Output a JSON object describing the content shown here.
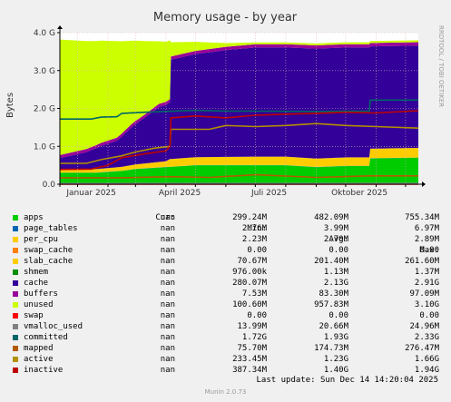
{
  "chart_data": {
    "type": "area",
    "title": "Memory usage - by year",
    "ylabel": "Bytes",
    "side_label": "RRDTOOL / TOBI OETIKER",
    "ylim": [
      0,
      4000000000
    ],
    "y_ticks": [
      {
        "value": 0,
        "label": "0.0"
      },
      {
        "value": 1000000000,
        "label": "1.0 G"
      },
      {
        "value": 2000000000,
        "label": "2.0 G"
      },
      {
        "value": 3000000000,
        "label": "3.0 G"
      },
      {
        "value": 4000000000,
        "label": "4.0 G"
      }
    ],
    "x_range": [
      "2024-12-14",
      "2025-12-14"
    ],
    "x_ticks": [
      {
        "date": "2025-01-15",
        "label": "Januar 2025"
      },
      {
        "date": "2025-04-15",
        "label": "April 2025"
      },
      {
        "date": "2025-07-15",
        "label": "Juli 2025"
      },
      {
        "date": "2025-10-15",
        "label": "Oktober 2025"
      }
    ],
    "x_grid": [
      "2025-01-01",
      "2025-02-01",
      "2025-03-01",
      "2025-04-01",
      "2025-05-01",
      "2025-06-01",
      "2025-07-01",
      "2025-08-01",
      "2025-09-01",
      "2025-10-01",
      "2025-11-01",
      "2025-12-01"
    ],
    "stack_series": [
      {
        "name": "apps",
        "color": "#00cc00",
        "points": [
          [
            "2024-12-14",
            0.3
          ],
          [
            "2025-01-20",
            0.3
          ],
          [
            "2025-02-15",
            0.35
          ],
          [
            "2025-03-01",
            0.4
          ],
          [
            "2025-04-01",
            0.45
          ],
          [
            "2025-05-01",
            0.5
          ],
          [
            "2025-08-01",
            0.5
          ],
          [
            "2025-09-01",
            0.45
          ],
          [
            "2025-10-01",
            0.48
          ],
          [
            "2025-10-25",
            0.48
          ],
          [
            "2025-10-26",
            0.68
          ],
          [
            "2025-12-14",
            0.7
          ]
        ]
      },
      {
        "name": "page_tables",
        "color": "#0066b3",
        "points": [
          [
            "2024-12-14",
            0.004
          ],
          [
            "2025-12-14",
            0.004
          ]
        ]
      },
      {
        "name": "per_cpu",
        "color": "#ffcc00",
        "points": [
          [
            "2024-12-14",
            0.003
          ],
          [
            "2025-12-14",
            0.003
          ]
        ]
      },
      {
        "name": "swap_cache",
        "color": "#ff8000",
        "points": [
          [
            "2024-12-14",
            0
          ],
          [
            "2025-12-14",
            0
          ]
        ]
      },
      {
        "name": "slab_cache",
        "color": "#ffcc00",
        "points": [
          [
            "2024-12-14",
            0.08
          ],
          [
            "2025-02-15",
            0.1
          ],
          [
            "2025-04-01",
            0.15
          ],
          [
            "2025-04-05",
            0.2
          ],
          [
            "2025-07-01",
            0.22
          ],
          [
            "2025-10-25",
            0.22
          ],
          [
            "2025-10-26",
            0.25
          ],
          [
            "2025-12-14",
            0.25
          ]
        ]
      },
      {
        "name": "shmem",
        "color": "#330099",
        "points": [
          [
            "2024-12-14",
            0.001
          ],
          [
            "2025-12-14",
            0.001
          ]
        ]
      },
      {
        "name": "cache",
        "color": "#330099",
        "points": [
          [
            "2024-12-14",
            0.3
          ],
          [
            "2025-01-10",
            0.45
          ],
          [
            "2025-01-25",
            0.6
          ],
          [
            "2025-02-10",
            0.7
          ],
          [
            "2025-02-25",
            1.0
          ],
          [
            "2025-03-10",
            1.2
          ],
          [
            "2025-03-25",
            1.45
          ],
          [
            "2025-04-05",
            1.5
          ],
          [
            "2025-04-06",
            2.62
          ],
          [
            "2025-05-01",
            2.72
          ],
          [
            "2025-06-01",
            2.82
          ],
          [
            "2025-07-01",
            2.88
          ],
          [
            "2025-08-01",
            2.88
          ],
          [
            "2025-09-01",
            2.9
          ],
          [
            "2025-10-01",
            2.9
          ],
          [
            "2025-10-25",
            2.9
          ],
          [
            "2025-10-26",
            2.7
          ],
          [
            "2025-12-14",
            2.7
          ]
        ]
      },
      {
        "name": "buffers",
        "color": "#990099",
        "points": [
          [
            "2024-12-14",
            0.08
          ],
          [
            "2025-12-14",
            0.09
          ]
        ]
      },
      {
        "name": "unused",
        "color": "#ccff00",
        "points": [
          [
            "2024-12-14",
            3.05
          ],
          [
            "2025-01-10",
            2.85
          ],
          [
            "2025-01-25",
            2.7
          ],
          [
            "2025-02-10",
            2.55
          ],
          [
            "2025-02-25",
            2.2
          ],
          [
            "2025-03-10",
            1.95
          ],
          [
            "2025-03-25",
            1.65
          ],
          [
            "2025-04-05",
            1.55
          ],
          [
            "2025-04-06",
            0.38
          ],
          [
            "2025-05-01",
            0.24
          ],
          [
            "2025-06-01",
            0.1
          ],
          [
            "2025-07-01",
            0.05
          ],
          [
            "2025-12-14",
            0.05
          ]
        ]
      }
    ],
    "line_series": [
      {
        "name": "swap",
        "color": "#ff0000",
        "points": [
          [
            "2024-12-14",
            0
          ],
          [
            "2025-12-14",
            0
          ]
        ]
      },
      {
        "name": "vmalloc_used",
        "color": "#808080",
        "points": [
          [
            "2024-12-14",
            0.02
          ],
          [
            "2025-12-14",
            0.02
          ]
        ]
      },
      {
        "name": "committed",
        "color": "#006666",
        "points": [
          [
            "2024-12-14",
            1.72
          ],
          [
            "2025-01-15",
            1.72
          ],
          [
            "2025-01-25",
            1.77
          ],
          [
            "2025-02-10",
            1.78
          ],
          [
            "2025-02-15",
            1.87
          ],
          [
            "2025-03-10",
            1.9
          ],
          [
            "2025-04-01",
            1.92
          ],
          [
            "2025-05-01",
            1.95
          ],
          [
            "2025-06-01",
            1.93
          ],
          [
            "2025-07-01",
            1.93
          ],
          [
            "2025-09-01",
            1.92
          ],
          [
            "2025-10-25",
            1.93
          ],
          [
            "2025-10-26",
            2.22
          ],
          [
            "2025-12-14",
            2.22
          ]
        ]
      },
      {
        "name": "mapped",
        "color": "#b35a00",
        "points": [
          [
            "2024-12-14",
            0.17
          ],
          [
            "2025-02-15",
            0.17
          ],
          [
            "2025-04-05",
            0.2
          ],
          [
            "2025-05-15",
            0.18
          ],
          [
            "2025-07-01",
            0.25
          ],
          [
            "2025-09-01",
            0.18
          ],
          [
            "2025-10-25",
            0.22
          ],
          [
            "2025-12-14",
            0.22
          ]
        ]
      },
      {
        "name": "active",
        "color": "#b38f00",
        "points": [
          [
            "2024-12-14",
            0.55
          ],
          [
            "2025-01-10",
            0.55
          ],
          [
            "2025-01-25",
            0.65
          ],
          [
            "2025-02-15",
            0.75
          ],
          [
            "2025-03-01",
            0.85
          ],
          [
            "2025-03-20",
            0.95
          ],
          [
            "2025-04-05",
            1.0
          ],
          [
            "2025-04-06",
            1.45
          ],
          [
            "2025-05-15",
            1.45
          ],
          [
            "2025-06-01",
            1.55
          ],
          [
            "2025-07-01",
            1.52
          ],
          [
            "2025-08-01",
            1.55
          ],
          [
            "2025-09-01",
            1.6
          ],
          [
            "2025-10-01",
            1.55
          ],
          [
            "2025-11-01",
            1.52
          ],
          [
            "2025-12-14",
            1.48
          ]
        ]
      },
      {
        "name": "inactive",
        "color": "#bd0000",
        "points": [
          [
            "2024-12-14",
            0.39
          ],
          [
            "2025-01-15",
            0.4
          ],
          [
            "2025-02-01",
            0.5
          ],
          [
            "2025-02-15",
            0.7
          ],
          [
            "2025-03-10",
            0.8
          ],
          [
            "2025-04-01",
            0.88
          ],
          [
            "2025-04-05",
            1.0
          ],
          [
            "2025-04-06",
            1.75
          ],
          [
            "2025-05-01",
            1.8
          ],
          [
            "2025-06-01",
            1.75
          ],
          [
            "2025-07-01",
            1.82
          ],
          [
            "2025-08-01",
            1.85
          ],
          [
            "2025-09-01",
            1.87
          ],
          [
            "2025-10-01",
            1.9
          ],
          [
            "2025-11-01",
            1.88
          ],
          [
            "2025-12-14",
            1.94
          ]
        ]
      }
    ]
  },
  "legend": {
    "headers": {
      "cur": "Cur:",
      "min": "Min:",
      "avg": "Avg:",
      "max": "Max:"
    },
    "rows": [
      {
        "name": "apps",
        "color": "#00cc00",
        "cur": "nan",
        "min": "299.24M",
        "avg": "482.09M",
        "max": "755.34M"
      },
      {
        "name": "page_tables",
        "color": "#0066b3",
        "cur": "nan",
        "min": "2.76M",
        "avg": "3.99M",
        "max": "6.97M"
      },
      {
        "name": "per_cpu",
        "color": "#ffcc00",
        "cur": "nan",
        "min": "2.23M",
        "avg": "2.70M",
        "max": "2.89M"
      },
      {
        "name": "swap_cache",
        "color": "#ff8000",
        "cur": "nan",
        "min": "0.00",
        "avg": "0.00",
        "max": "0.00"
      },
      {
        "name": "slab_cache",
        "color": "#ffcc00",
        "cur": "nan",
        "min": "70.67M",
        "avg": "201.40M",
        "max": "261.60M"
      },
      {
        "name": "shmem",
        "color": "#008f00",
        "cur": "nan",
        "min": "976.00k",
        "avg": "1.13M",
        "max": "1.37M"
      },
      {
        "name": "cache",
        "color": "#330099",
        "cur": "nan",
        "min": "280.07M",
        "avg": "2.13G",
        "max": "2.91G"
      },
      {
        "name": "buffers",
        "color": "#990099",
        "cur": "nan",
        "min": "7.53M",
        "avg": "83.30M",
        "max": "97.09M"
      },
      {
        "name": "unused",
        "color": "#ccff00",
        "cur": "nan",
        "min": "100.60M",
        "avg": "957.83M",
        "max": "3.10G"
      },
      {
        "name": "swap",
        "color": "#ff0000",
        "cur": "nan",
        "min": "0.00",
        "avg": "0.00",
        "max": "0.00"
      },
      {
        "name": "vmalloc_used",
        "color": "#808080",
        "cur": "nan",
        "min": "13.99M",
        "avg": "20.66M",
        "max": "24.96M"
      },
      {
        "name": "committed",
        "color": "#006666",
        "cur": "nan",
        "min": "1.72G",
        "avg": "1.93G",
        "max": "2.33G"
      },
      {
        "name": "mapped",
        "color": "#b35a00",
        "cur": "nan",
        "min": "75.70M",
        "avg": "174.73M",
        "max": "276.47M"
      },
      {
        "name": "active",
        "color": "#b38f00",
        "cur": "nan",
        "min": "233.45M",
        "avg": "1.23G",
        "max": "1.66G"
      },
      {
        "name": "inactive",
        "color": "#bd0000",
        "cur": "nan",
        "min": "387.34M",
        "avg": "1.40G",
        "max": "1.94G"
      }
    ]
  },
  "footer": {
    "last_update": "Last update: Sun Dec 14 14:20:04 2025",
    "munin": "Munin 2.0.73"
  }
}
